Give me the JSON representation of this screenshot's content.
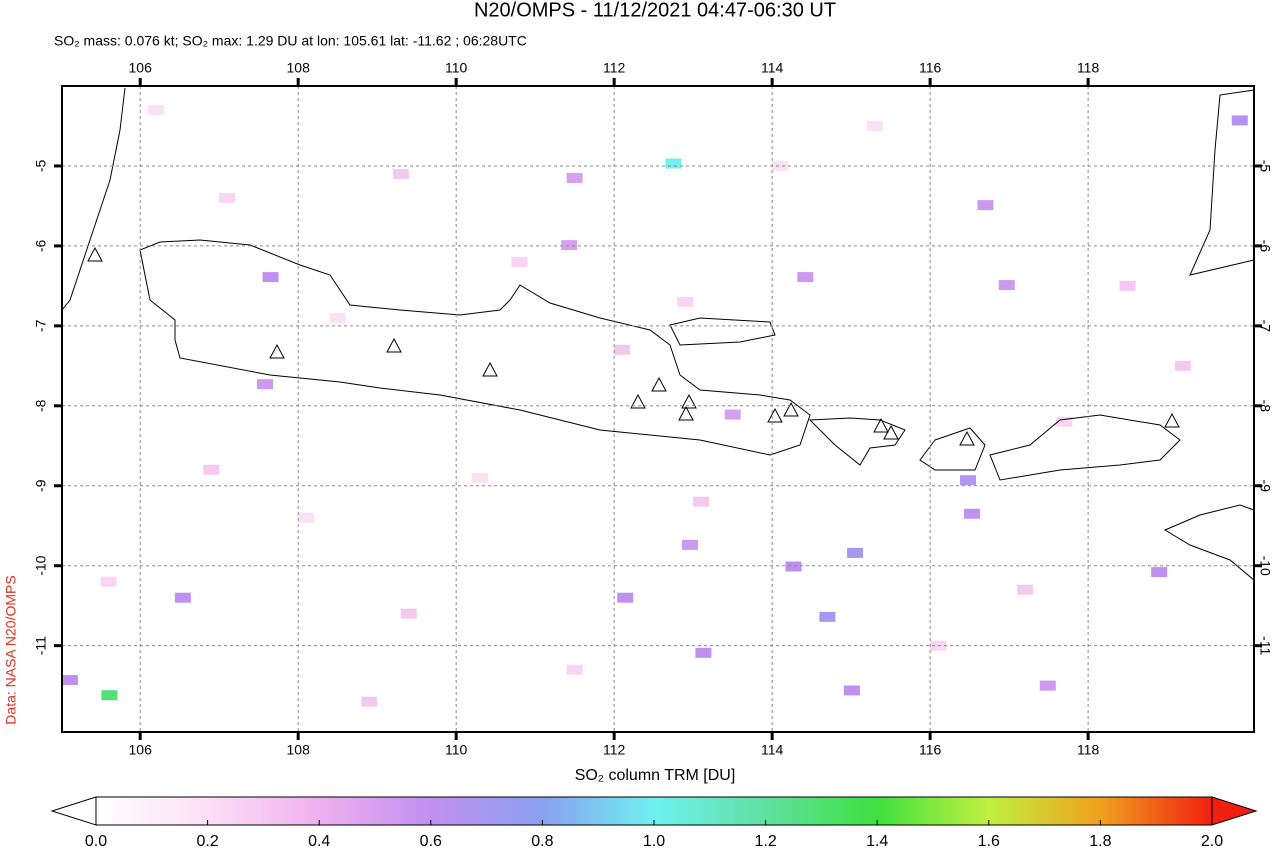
{
  "chart_data": {
    "type": "map",
    "title": "N20/OMPS - 11/12/2021 04:47-06:30 UT",
    "subtitle": "SO₂ mass: 0.076 kt; SO₂ max: 1.29 DU at lon: 105.61 lat: -11.62 ; 06:28UTC",
    "credit": "Data: NASA N20/OMPS",
    "xlim": [
      105.01,
      120.1
    ],
    "ylim": [
      -12.08,
      -4
    ],
    "xticks": [
      106,
      108,
      110,
      112,
      114,
      116,
      118
    ],
    "yticks": [
      -5,
      -6,
      -7,
      -8,
      -9,
      -10,
      -11
    ],
    "grid": true,
    "colorbar": {
      "label": "SO₂ column TRM [DU]",
      "clim": [
        0,
        2
      ],
      "colors": [
        "#ffffff",
        "#fce0f5",
        "#eeb0ee",
        "#c090f0",
        "#8aa0f0",
        "#70f0f0",
        "#60e0a0",
        "#40e040",
        "#c0f040",
        "#f0a020",
        "#f02010"
      ],
      "ticks": [
        {
          "value": 0,
          "label": "0.0"
        },
        {
          "value": 0.2,
          "label": "0.2"
        },
        {
          "value": 0.4,
          "label": "0.4"
        },
        {
          "value": 0.6,
          "label": "0.6"
        },
        {
          "value": 0.8,
          "label": "0.8"
        },
        {
          "value": 1,
          "label": "1.0"
        },
        {
          "value": 1.2,
          "label": "1.2"
        },
        {
          "value": 1.4,
          "label": "1.4"
        },
        {
          "value": 1.6,
          "label": "1.6"
        },
        {
          "value": 1.8,
          "label": "1.8"
        },
        {
          "value": 2,
          "label": "2.0"
        }
      ]
    },
    "pixels": {
      "lon": [
        112.75,
        105.61,
        114.7,
        115.05,
        116.48,
        116.53,
        119.92,
        118.9,
        114.42,
        116.97,
        116.7,
        112.14,
        113.13,
        115.01,
        117.49,
        105.11,
        106.54,
        107.65,
        107.58,
        111.5,
        111.43,
        113.5,
        114.27,
        112.96,
        106.2,
        107.1,
        108.5,
        109.3,
        110.8,
        112.1,
        113.1,
        111.5,
        109.4,
        108.1,
        106.9,
        105.6,
        117.7,
        118.5,
        119.2,
        116.1,
        114.1,
        115.3,
        117.2,
        110.3,
        108.9,
        112.9
      ],
      "lat": [
        -4.97,
        -11.62,
        -10.64,
        -9.84,
        -8.93,
        -9.35,
        -4.43,
        -10.08,
        -6.39,
        -6.49,
        -5.49,
        -10.4,
        -11.09,
        -11.56,
        -11.5,
        -11.43,
        -10.4,
        -6.39,
        -7.73,
        -5.15,
        -5.99,
        -8.11,
        -10.01,
        -9.74,
        -4.3,
        -5.4,
        -6.9,
        -5.1,
        -6.2,
        -7.3,
        -9.2,
        -11.3,
        -10.6,
        -9.4,
        -8.8,
        -10.2,
        -8.2,
        -6.5,
        -7.5,
        -11.0,
        -5.0,
        -4.5,
        -10.3,
        -8.9,
        -11.7,
        -6.7
      ],
      "values": [
        1.0,
        1.29,
        0.7,
        0.7,
        0.65,
        0.6,
        0.65,
        0.6,
        0.55,
        0.55,
        0.55,
        0.6,
        0.6,
        0.6,
        0.55,
        0.6,
        0.6,
        0.6,
        0.55,
        0.5,
        0.5,
        0.5,
        0.6,
        0.55,
        0.2,
        0.25,
        0.2,
        0.3,
        0.25,
        0.3,
        0.3,
        0.25,
        0.3,
        0.2,
        0.3,
        0.25,
        0.25,
        0.3,
        0.3,
        0.25,
        0.2,
        0.2,
        0.3,
        0.2,
        0.3,
        0.25
      ]
    }
  }
}
